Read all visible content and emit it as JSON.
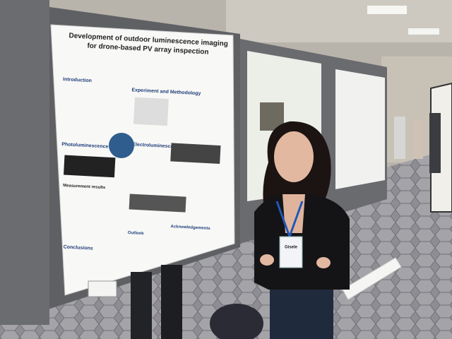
{
  "poster": {
    "title": [
      "Development of outdoor luminescence imaging",
      "for drone-based PV array inspection"
    ],
    "sections": [
      "Introduction",
      "Experiment and Methodology",
      "Photoluminescence",
      "Electroluminescence",
      "Measurement results",
      "Conclusions",
      "Outlook",
      "Acknowledgements"
    ]
  },
  "badge": {
    "name": "Gisele"
  }
}
